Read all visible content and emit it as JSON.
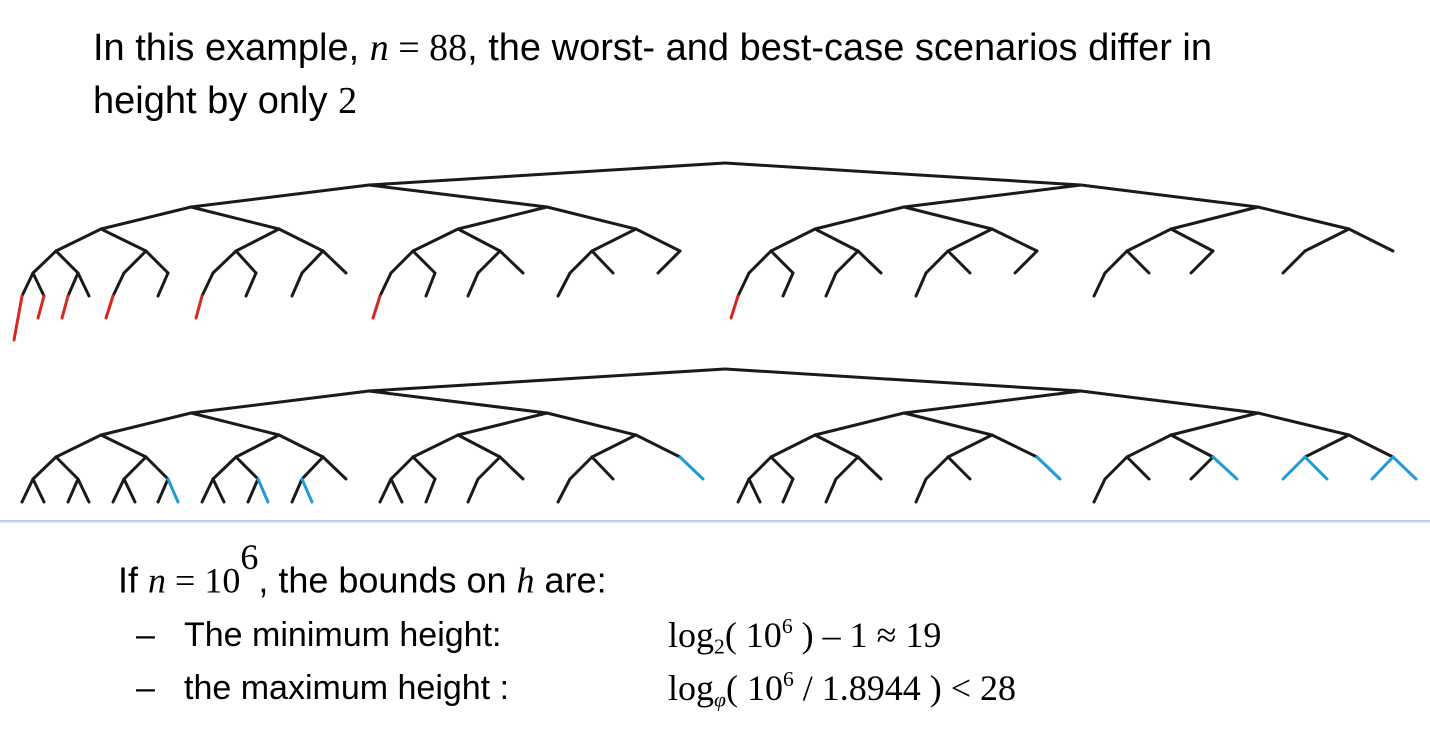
{
  "title": {
    "prefix": "In this example, ",
    "var_n": "n",
    "eq_value": " = 88",
    "suffix_line1": ", the worst- and best-case scenarios differ in",
    "line2_text": "height by only ",
    "line2_value": "2"
  },
  "colors": {
    "edge": "#1a1a1a",
    "worst_extra": "#d6281f",
    "best_extra": "#1f9bd8",
    "divider": "#a9c3ec"
  },
  "bounds": {
    "intro_prefix": "If ",
    "var_n": "n",
    "intro_eq": " = 10",
    "intro_exp": "6",
    "intro_mid": ", the bounds on ",
    "var_h": "h",
    "intro_suffix": " are:",
    "items": [
      {
        "dash": "–",
        "label": "The minimum height:",
        "f_log": "log",
        "f_base": "2",
        "f_open": "( 10",
        "f_exp": "6",
        "f_rest": " ) – 1 ≈ 19"
      },
      {
        "dash": "–",
        "label": "the maximum height :",
        "f_log": "log",
        "f_base": "φ",
        "f_open": "( 10",
        "f_exp": "6",
        "f_rest": " / 1.8944 ) < 28"
      }
    ]
  }
}
